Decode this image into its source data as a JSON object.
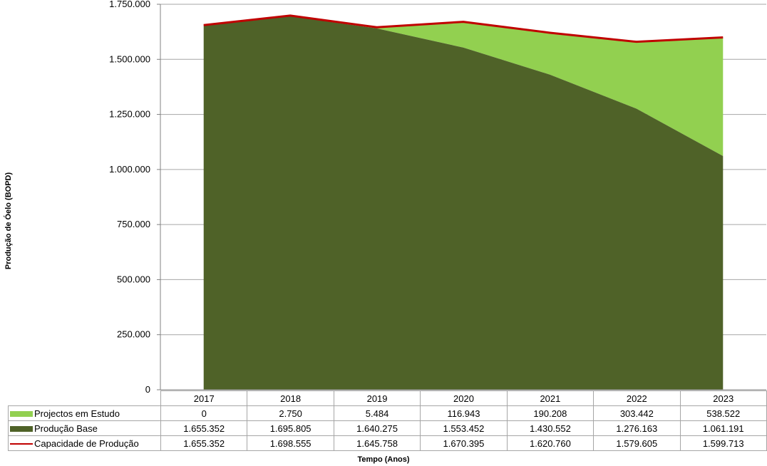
{
  "chart_data": {
    "type": "area",
    "title": "",
    "xlabel": "Tempo (Anos)",
    "ylabel": "Produção de Óelo (BOPD)",
    "ylim": [
      0,
      1750000
    ],
    "yticks": [
      0,
      250000,
      500000,
      750000,
      1000000,
      1250000,
      1500000,
      1750000
    ],
    "ytick_labels": [
      "0",
      "250.000",
      "500.000",
      "750.000",
      "1.000.000",
      "1.250.000",
      "1.500.000",
      "1.750.000"
    ],
    "grid": true,
    "legend": "data-table-left",
    "categories": [
      "2017",
      "2018",
      "2019",
      "2020",
      "2021",
      "2022",
      "2023"
    ],
    "series": [
      {
        "name": "Projectos em Estudo",
        "kind": "stacked-area",
        "color": "#92d050",
        "values": [
          0,
          2750,
          5484,
          116943,
          190208,
          303442,
          538522
        ],
        "labels": [
          "0",
          "2.750",
          "5.484",
          "116.943",
          "190.208",
          "303.442",
          "538.522"
        ]
      },
      {
        "name": "Produção Base",
        "kind": "stacked-area",
        "color": "#4f6228",
        "values": [
          1655352,
          1695805,
          1640275,
          1553452,
          1430552,
          1276163,
          1061191
        ],
        "labels": [
          "1.655.352",
          "1.695.805",
          "1.640.275",
          "1.553.452",
          "1.430.552",
          "1.276.163",
          "1.061.191"
        ]
      },
      {
        "name": "Capacidade de Produção",
        "kind": "line",
        "color": "#c00000",
        "values": [
          1655352,
          1698555,
          1645758,
          1670395,
          1620760,
          1579605,
          1599713
        ],
        "labels": [
          "1.655.352",
          "1.698.555",
          "1.645.758",
          "1.670.395",
          "1.620.760",
          "1.579.605",
          "1.599.713"
        ]
      }
    ]
  }
}
